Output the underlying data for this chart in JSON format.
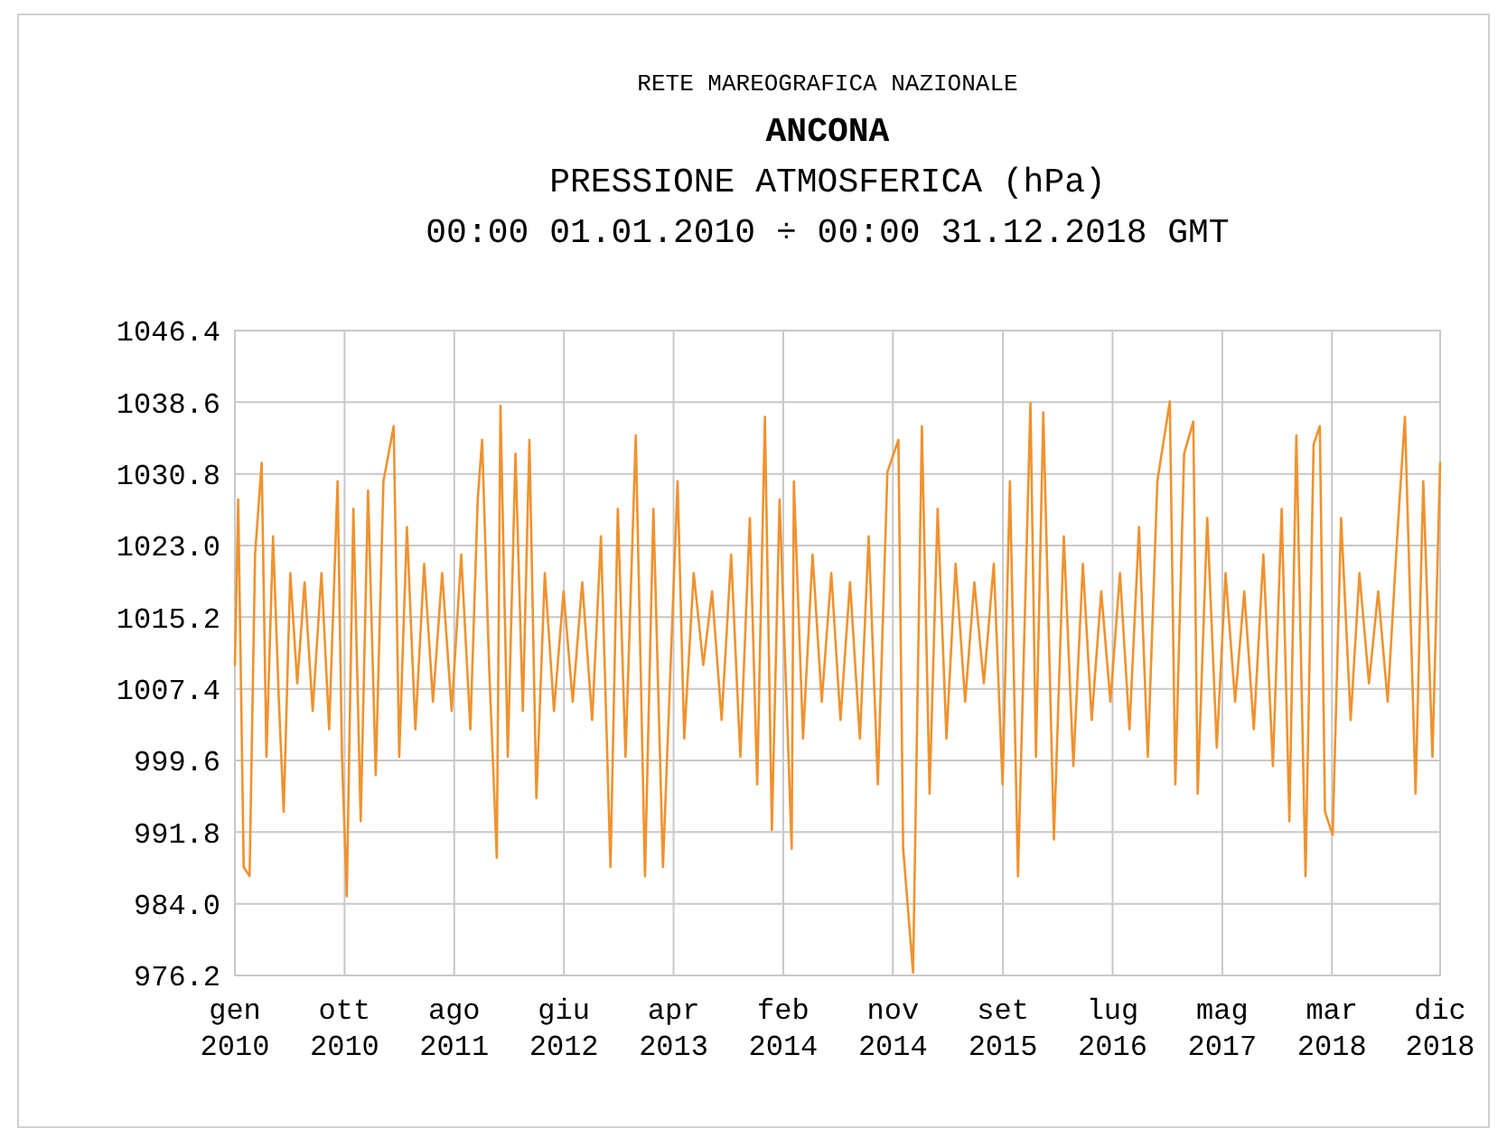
{
  "chart_data": {
    "type": "line",
    "title": "ANCONA",
    "subtitle": "PRESSIONE ATMOSFERICA (hPa)\n00:00 01.01.2010 ÷ 00:00 31.12.2018 GMT",
    "annotations": [
      "RETE MAREOGRAFICA NAZIONALE"
    ],
    "x": [
      "2010-01-01",
      "2010-01-10",
      "2010-01-25",
      "2010-02-10",
      "2010-02-25",
      "2010-03-15",
      "2010-03-28",
      "2010-04-15",
      "2010-05-01",
      "2010-05-14",
      "2010-06-01",
      "2010-06-20",
      "2010-07-10",
      "2010-08-01",
      "2010-08-25",
      "2010-09-15",
      "2010-10-08",
      "2010-10-20",
      "2010-11-02",
      "2010-11-20",
      "2010-12-10",
      "2010-12-30",
      "2011-01-20",
      "2011-02-10",
      "2011-03-10",
      "2011-03-25",
      "2011-04-15",
      "2011-05-08",
      "2011-06-01",
      "2011-06-25",
      "2011-07-20",
      "2011-08-15",
      "2011-09-10",
      "2011-10-05",
      "2011-10-25",
      "2011-11-06",
      "2011-11-25",
      "2011-12-16",
      "2011-12-26",
      "2012-01-15",
      "2012-02-05",
      "2012-02-25",
      "2012-03-14",
      "2012-04-02",
      "2012-04-25",
      "2012-05-20",
      "2012-06-15",
      "2012-07-10",
      "2012-08-05",
      "2012-09-01",
      "2012-09-25",
      "2012-10-21",
      "2012-11-10",
      "2012-12-01",
      "2012-12-29",
      "2013-01-23",
      "2013-02-15",
      "2013-03-13",
      "2013-04-22",
      "2013-05-10",
      "2013-06-05",
      "2013-07-01",
      "2013-07-25",
      "2013-08-20",
      "2013-09-15",
      "2013-10-10",
      "2013-11-05",
      "2013-11-25",
      "2013-12-16",
      "2014-01-04",
      "2014-01-25",
      "2014-02-27",
      "2014-03-05",
      "2014-03-30",
      "2014-04-25",
      "2014-05-20",
      "2014-06-15",
      "2014-07-10",
      "2014-08-05",
      "2014-09-01",
      "2014-09-25",
      "2014-10-20",
      "2014-11-15",
      "2014-12-15",
      "2014-12-28",
      "2015-01-24",
      "2015-02-17",
      "2015-03-10",
      "2015-04-01",
      "2015-04-25",
      "2015-05-20",
      "2015-06-15",
      "2015-07-10",
      "2015-08-05",
      "2015-09-01",
      "2015-09-25",
      "2015-10-15",
      "2015-11-06",
      "2015-12-10",
      "2015-12-25",
      "2016-01-14",
      "2016-02-12",
      "2016-03-10",
      "2016-04-05",
      "2016-05-01",
      "2016-05-25",
      "2016-06-20",
      "2016-07-15",
      "2016-08-10",
      "2016-09-05",
      "2016-10-01",
      "2016-10-25",
      "2016-11-20",
      "2016-12-24",
      "2017-01-08",
      "2017-02-01",
      "2017-02-26",
      "2017-03-10",
      "2017-04-05",
      "2017-05-01",
      "2017-05-25",
      "2017-06-20",
      "2017-07-15",
      "2017-08-10",
      "2017-09-05",
      "2017-10-01",
      "2017-10-25",
      "2017-11-15",
      "2017-12-04",
      "2017-12-29",
      "2018-01-20",
      "2018-02-06",
      "2018-02-20",
      "2018-03-13",
      "2018-04-05",
      "2018-05-01",
      "2018-05-25",
      "2018-06-20",
      "2018-07-15",
      "2018-08-10",
      "2018-09-05",
      "2018-09-26",
      "2018-10-25",
      "2018-11-15",
      "2018-12-10",
      "2018-12-31"
    ],
    "series": [
      {
        "color": "#f0922e",
        "values": [
          1010,
          1028,
          988,
          987,
          1022,
          1032,
          1000,
          1024,
          1006,
          994,
          1020,
          1008,
          1019,
          1005,
          1020,
          1003,
          1030,
          1000,
          984.8,
          1027,
          993,
          1029,
          998,
          1030,
          1036,
          1000,
          1025,
          1003,
          1021,
          1006,
          1020,
          1005,
          1022,
          1003,
          1028,
          1034.5,
          1010,
          989,
          1038.2,
          1000,
          1033,
          1005,
          1034.5,
          995.5,
          1020,
          1005,
          1018,
          1006,
          1019,
          1004,
          1024,
          988,
          1027,
          1000,
          1035,
          987,
          1027,
          988,
          1030,
          1002,
          1020,
          1010,
          1018,
          1004,
          1022,
          1000,
          1026,
          997,
          1037,
          992,
          1028,
          990,
          1030,
          1002,
          1022,
          1006,
          1020,
          1004,
          1019,
          1002,
          1024,
          997,
          1031,
          1034.5,
          990,
          976.5,
          1036,
          996,
          1027,
          1002,
          1021,
          1006,
          1019,
          1008,
          1021,
          997,
          1030,
          987,
          1038.5,
          1000,
          1037.5,
          991,
          1024,
          999,
          1021,
          1004,
          1018,
          1006,
          1020,
          1003,
          1025,
          1000,
          1030,
          1038.7,
          997,
          1033,
          1036.5,
          996,
          1026,
          1001,
          1020,
          1006,
          1018,
          1003,
          1022,
          999,
          1027,
          993,
          1035,
          987,
          1034,
          1036,
          994,
          991.5,
          1026,
          1004,
          1020,
          1008,
          1018,
          1006,
          1024,
          1037,
          996,
          1030,
          1000,
          1032
        ]
      }
    ],
    "xlim": [
      "2010-01-01",
      "2018-12-31"
    ],
    "xticks": [
      {
        "value": "2010-01-01",
        "label": "gen\n2010"
      },
      {
        "value": "2010-10-27",
        "label": "ott\n2010"
      },
      {
        "value": "2011-08-22",
        "label": "ago\n2011"
      },
      {
        "value": "2012-06-16",
        "label": "giu\n2012"
      },
      {
        "value": "2013-04-11",
        "label": "apr\n2013"
      },
      {
        "value": "2014-02-04",
        "label": "feb\n2014"
      },
      {
        "value": "2014-11-30",
        "label": "nov\n2014"
      },
      {
        "value": "2015-09-26",
        "label": "set\n2015"
      },
      {
        "value": "2016-07-21",
        "label": "lug\n2016"
      },
      {
        "value": "2017-05-16",
        "label": "mag\n2017"
      },
      {
        "value": "2018-03-11",
        "label": "mar\n2018"
      },
      {
        "value": "2018-12-31",
        "label": "dic\n2018"
      }
    ],
    "ylim": [
      976.2,
      1046.4
    ],
    "yticks": [
      {
        "value": 976.2,
        "label": "976.2"
      },
      {
        "value": 984,
        "label": "984.0"
      },
      {
        "value": 991.8,
        "label": "991.8"
      },
      {
        "value": 999.6,
        "label": "999.6"
      },
      {
        "value": 1007.4,
        "label": "1007.4"
      },
      {
        "value": 1015.2,
        "label": "1015.2"
      },
      {
        "value": 1023,
        "label": "1023.0"
      },
      {
        "value": 1030.8,
        "label": "1030.8"
      },
      {
        "value": 1038.6,
        "label": "1038.6"
      },
      {
        "value": 1046.4,
        "label": "1046.4"
      }
    ],
    "grid": true
  }
}
